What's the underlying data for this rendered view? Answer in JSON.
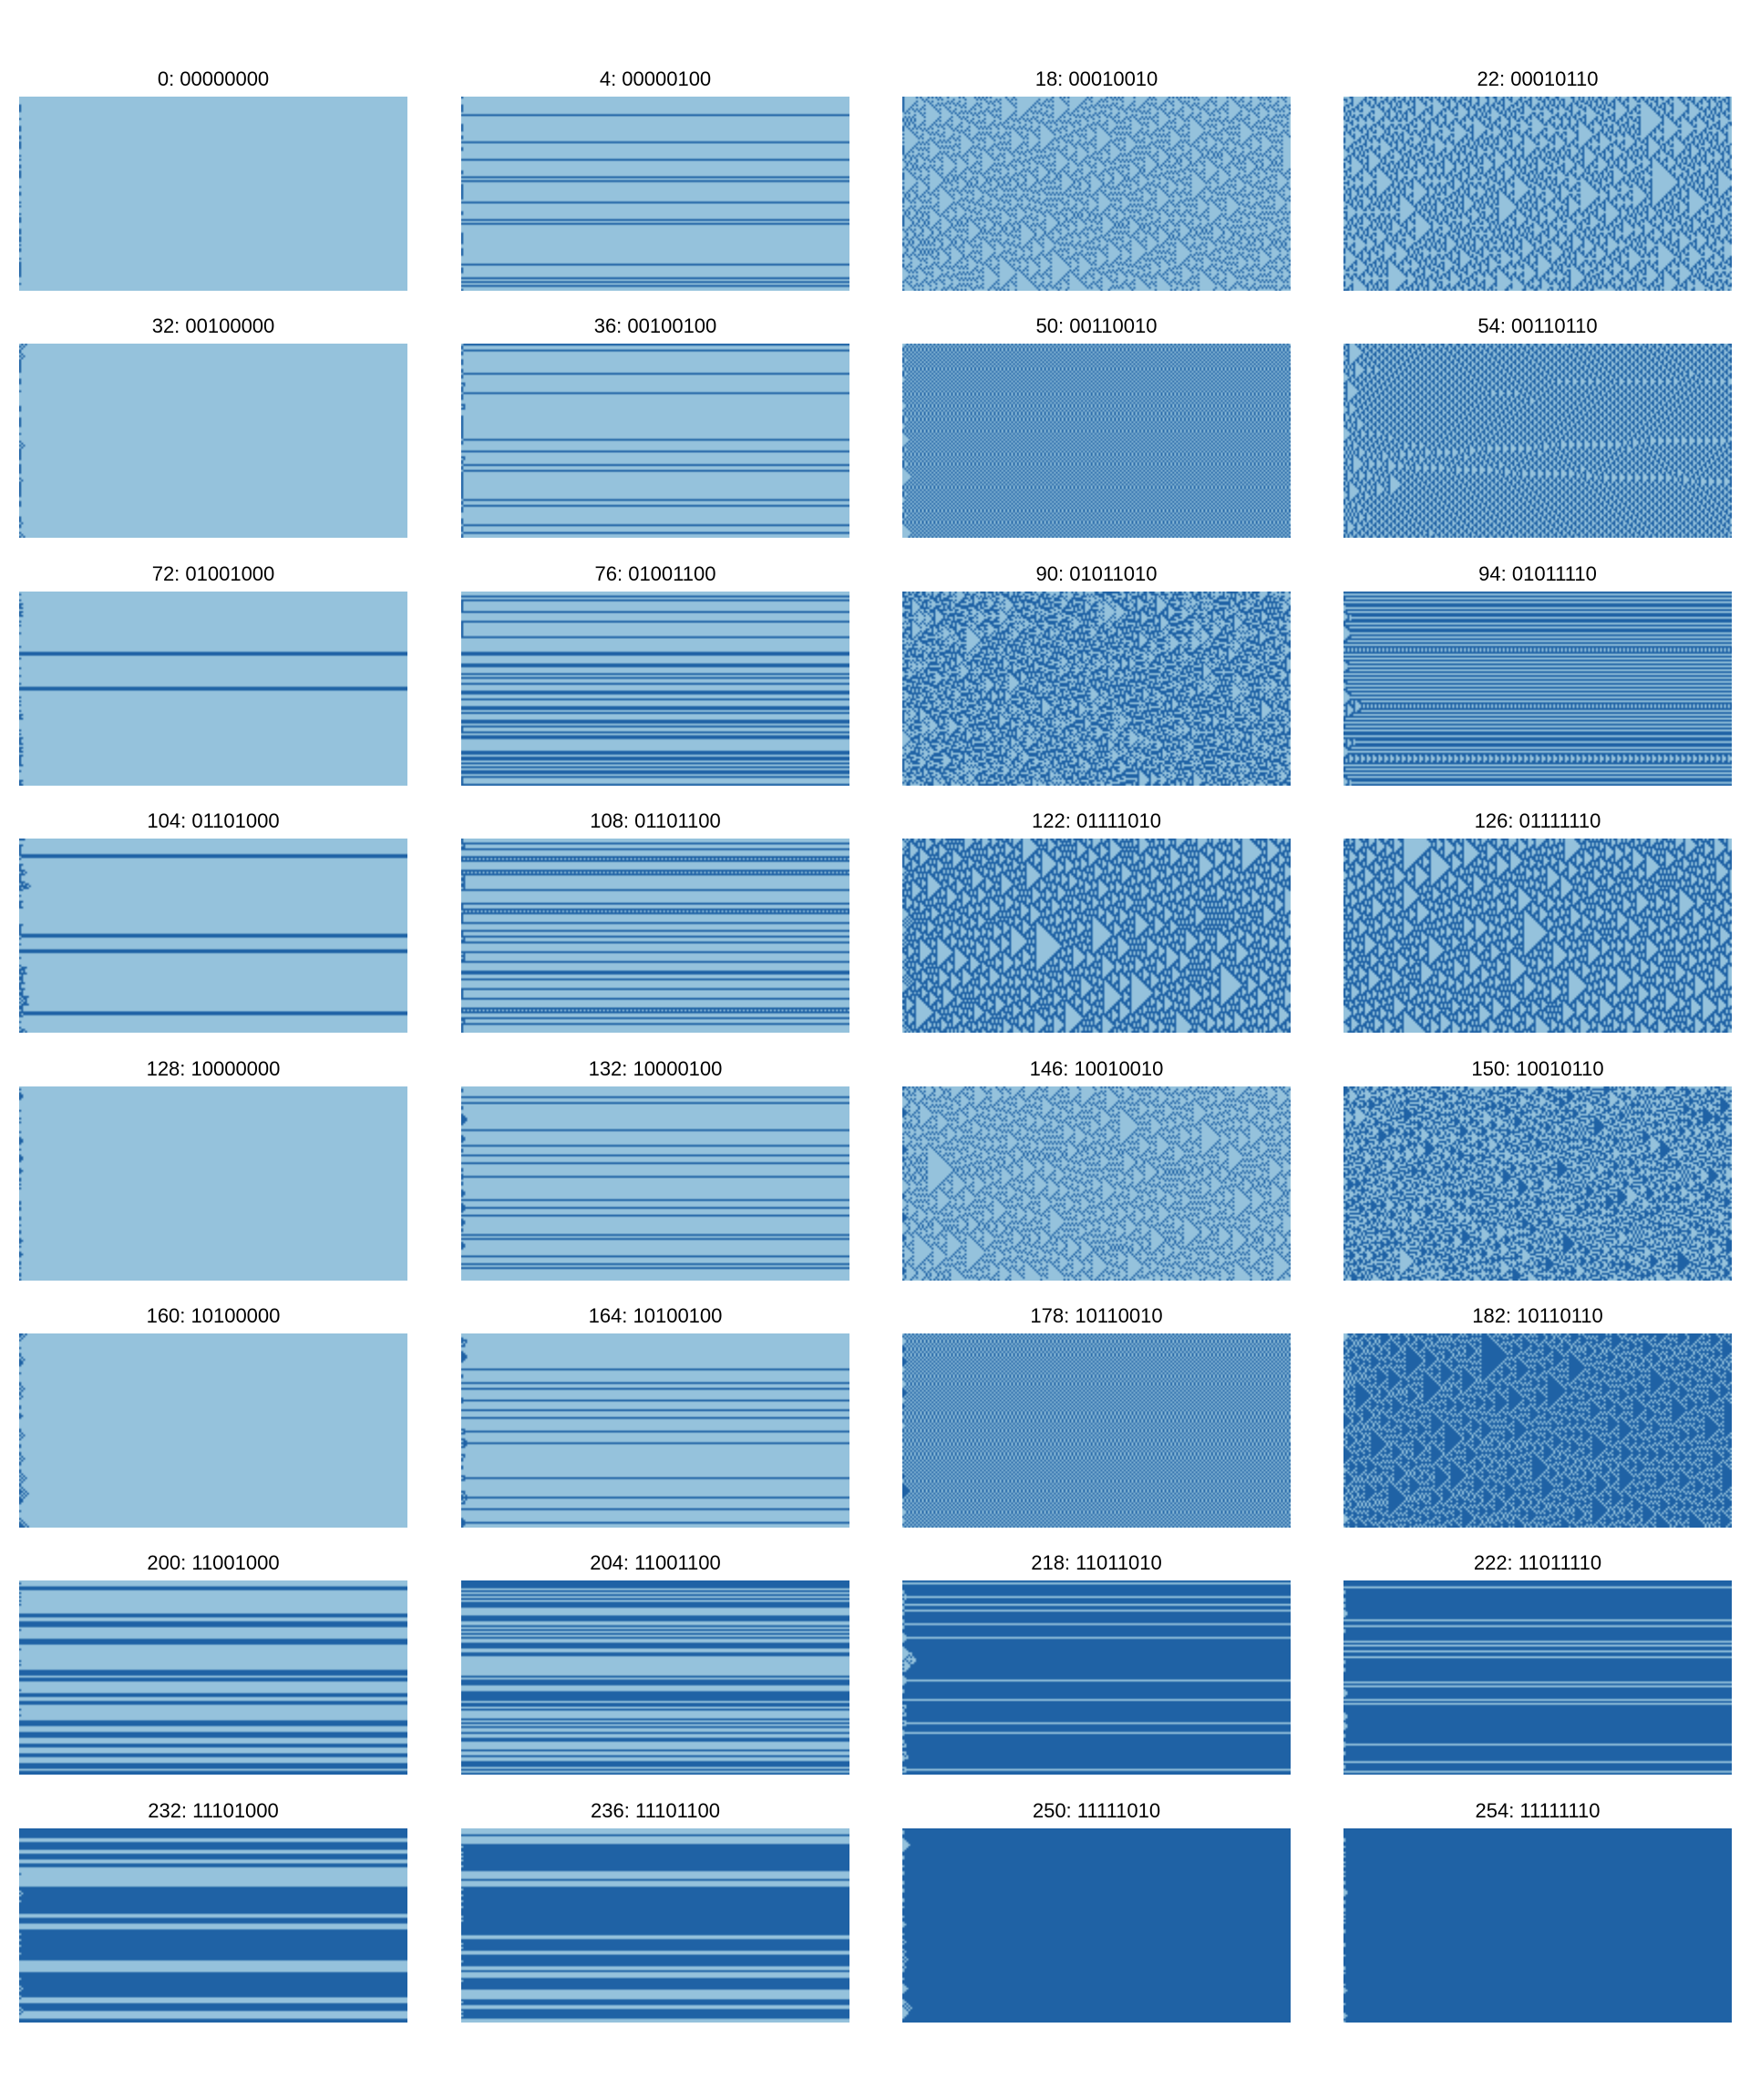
{
  "figure": {
    "colors": {
      "background": "#ffffff",
      "off_cell": "#95c2dc",
      "on_cell": "#1f62a5"
    },
    "simulation": {
      "cells_per_row": 100,
      "steps": 200,
      "boundary": "wrap",
      "initial_condition": "random",
      "axis": "time runs left to right"
    }
  },
  "panels": [
    {
      "title": "0: 00000000",
      "rule": 0
    },
    {
      "title": "4: 00000100",
      "rule": 4
    },
    {
      "title": "18: 00010010",
      "rule": 18
    },
    {
      "title": "22: 00010110",
      "rule": 22
    },
    {
      "title": "32: 00100000",
      "rule": 32
    },
    {
      "title": "36: 00100100",
      "rule": 36
    },
    {
      "title": "50: 00110010",
      "rule": 50
    },
    {
      "title": "54: 00110110",
      "rule": 54
    },
    {
      "title": "72: 01001000",
      "rule": 72
    },
    {
      "title": "76: 01001100",
      "rule": 76
    },
    {
      "title": "90: 01011010",
      "rule": 90
    },
    {
      "title": "94: 01011110",
      "rule": 94
    },
    {
      "title": "104: 01101000",
      "rule": 104
    },
    {
      "title": "108: 01101100",
      "rule": 108
    },
    {
      "title": "122: 01111010",
      "rule": 122
    },
    {
      "title": "126: 01111110",
      "rule": 126
    },
    {
      "title": "128: 10000000",
      "rule": 128
    },
    {
      "title": "132: 10000100",
      "rule": 132
    },
    {
      "title": "146: 10010010",
      "rule": 146
    },
    {
      "title": "150: 10010110",
      "rule": 150
    },
    {
      "title": "160: 10100000",
      "rule": 160
    },
    {
      "title": "164: 10100100",
      "rule": 164
    },
    {
      "title": "178: 10110010",
      "rule": 178
    },
    {
      "title": "182: 10110110",
      "rule": 182
    },
    {
      "title": "200: 11001000",
      "rule": 200
    },
    {
      "title": "204: 11001100",
      "rule": 204
    },
    {
      "title": "218: 11011010",
      "rule": 218
    },
    {
      "title": "222: 11011110",
      "rule": 222
    },
    {
      "title": "232: 11101000",
      "rule": 232
    },
    {
      "title": "236: 11101100",
      "rule": 236
    },
    {
      "title": "250: 11111010",
      "rule": 250
    },
    {
      "title": "254: 11111110",
      "rule": 254
    }
  ]
}
